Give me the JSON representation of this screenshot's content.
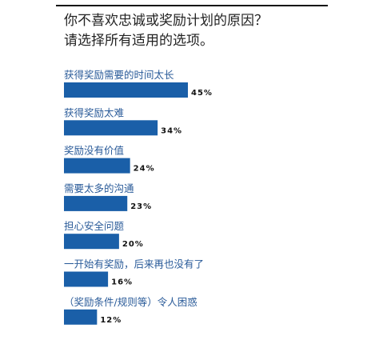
{
  "header": {
    "title_line1": "你不喜欢忠诚或奖励计划的原因？",
    "title_line2": "请选择所有适用的选项。"
  },
  "chart_data": {
    "type": "bar",
    "orientation": "horizontal",
    "categories": [
      "获得奖励需要的时间太长",
      "获得奖励太难",
      "奖励没有价值",
      "需要太多的沟通",
      "担心安全问题",
      "一开始有奖励，后来再也没有了",
      "（奖励条件/规则等）令人困惑"
    ],
    "values": [
      45,
      34,
      24,
      23,
      20,
      16,
      12
    ],
    "value_labels": [
      "45%",
      "34%",
      "24%",
      "23%",
      "20%",
      "16%",
      "12%"
    ],
    "xlim": [
      0,
      100
    ],
    "grid": false,
    "bar_color": "#1a5fa8",
    "label_color": "#2a5b99"
  }
}
